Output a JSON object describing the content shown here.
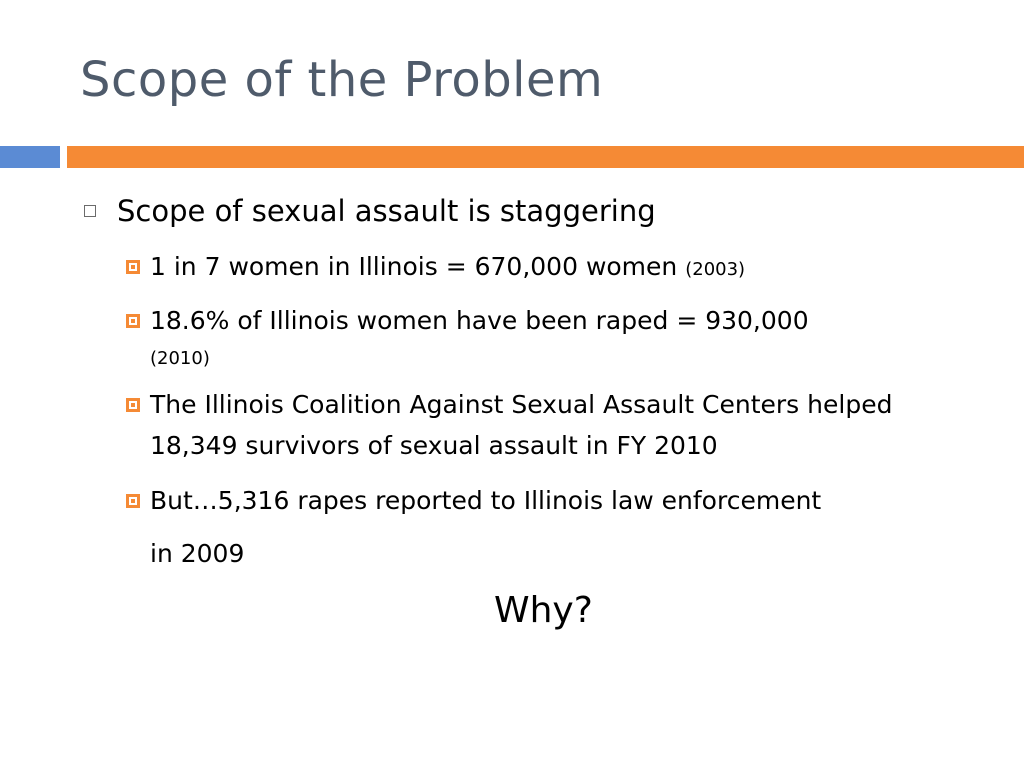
{
  "slide": {
    "title": "Scope of the Problem",
    "accent_colors": {
      "left_bar": "#5b8bd4",
      "main_bar": "#f58a35"
    },
    "bullets": [
      {
        "text": "Scope of sexual assault is staggering",
        "sub_bullets": [
          {
            "text": "1 in 7 women in Illinois = 670,000 women",
            "note": "(2003)"
          },
          {
            "text": "18.6% of Illinois women have been raped = 930,000",
            "note": "(2010)"
          },
          {
            "text": "The Illinois Coalition Against Sexual Assault Centers helped 18,349 survivors of sexual assault in FY 2010",
            "note": ""
          },
          {
            "text_line1": "But…5,316 rapes reported to Illinois law enforcement",
            "text_line2": "in 2009"
          }
        ]
      }
    ],
    "closing_question": "Why?"
  }
}
